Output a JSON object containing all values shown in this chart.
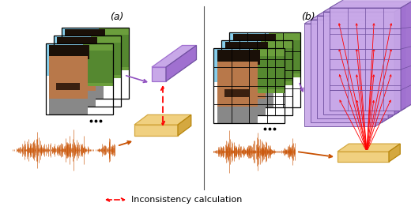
{
  "fig_width": 5.2,
  "fig_height": 2.66,
  "dpi": 100,
  "bg_color": "#ffffff",
  "label_a": "(a)",
  "label_b": "(b)",
  "legend_text": "Inconsistency calculation",
  "purple_light": "#C8A8E8",
  "purple_mid": "#A070D0",
  "purple_dark": "#7050A0",
  "yellow_light": "#F0D080",
  "yellow_mid": "#D4A840",
  "yellow_dark": "#B8860B",
  "waveform_color": "#C85000",
  "red_color": "#FF0000",
  "arrow_purple": "#9050C0",
  "arrow_orange": "#C85000"
}
